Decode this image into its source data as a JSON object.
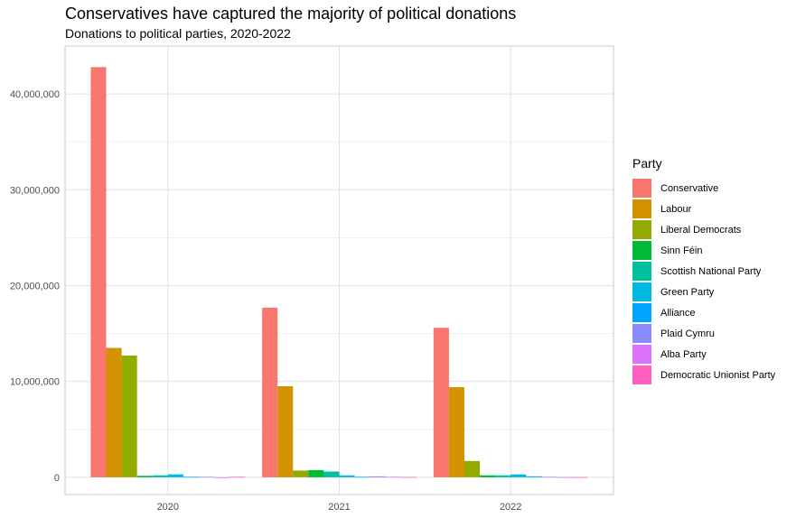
{
  "title": "Conservatives have captured the majority of political donations",
  "subtitle": "Donations to political parties, 2020-2022",
  "legend_title": "Party",
  "chart_data": {
    "type": "bar",
    "title": "Conservatives have captured the majority of political donations",
    "subtitle": "Donations to political parties, 2020-2022",
    "xlabel": "",
    "ylabel": "",
    "categories": [
      "2020",
      "2021",
      "2022"
    ],
    "ylim": [
      -1800000,
      45000000
    ],
    "yticks": [
      0,
      10000000,
      20000000,
      30000000,
      40000000
    ],
    "ytick_labels": [
      "0",
      "10,000,000",
      "20,000,000",
      "30,000,000",
      "40,000,000"
    ],
    "grid": true,
    "legend_position": "right",
    "series": [
      {
        "name": "Conservative",
        "color": "#F8766D",
        "values": [
          42800000,
          17700000,
          15600000
        ]
      },
      {
        "name": "Labour",
        "color": "#D39200",
        "values": [
          13500000,
          9500000,
          9400000
        ]
      },
      {
        "name": "Liberal Democrats",
        "color": "#93AA00",
        "values": [
          12700000,
          700000,
          1700000
        ]
      },
      {
        "name": "Sinn Féin",
        "color": "#00BA38",
        "values": [
          150000,
          750000,
          200000
        ]
      },
      {
        "name": "Scottish National Party",
        "color": "#00C19F",
        "values": [
          200000,
          600000,
          200000
        ]
      },
      {
        "name": "Green Party",
        "color": "#00B9E3",
        "values": [
          300000,
          200000,
          300000
        ]
      },
      {
        "name": "Alliance",
        "color": "#00A5FF",
        "values": [
          50000,
          50000,
          100000
        ]
      },
      {
        "name": "Plaid Cymru",
        "color": "#8B8BFF",
        "values": [
          50000,
          100000,
          50000
        ]
      },
      {
        "name": "Alba Party",
        "color": "#DB72FB",
        "values": [
          0,
          50000,
          20000
        ]
      },
      {
        "name": "Democratic Unionist Party",
        "color": "#FF61C3",
        "values": [
          50000,
          30000,
          20000
        ]
      }
    ]
  }
}
